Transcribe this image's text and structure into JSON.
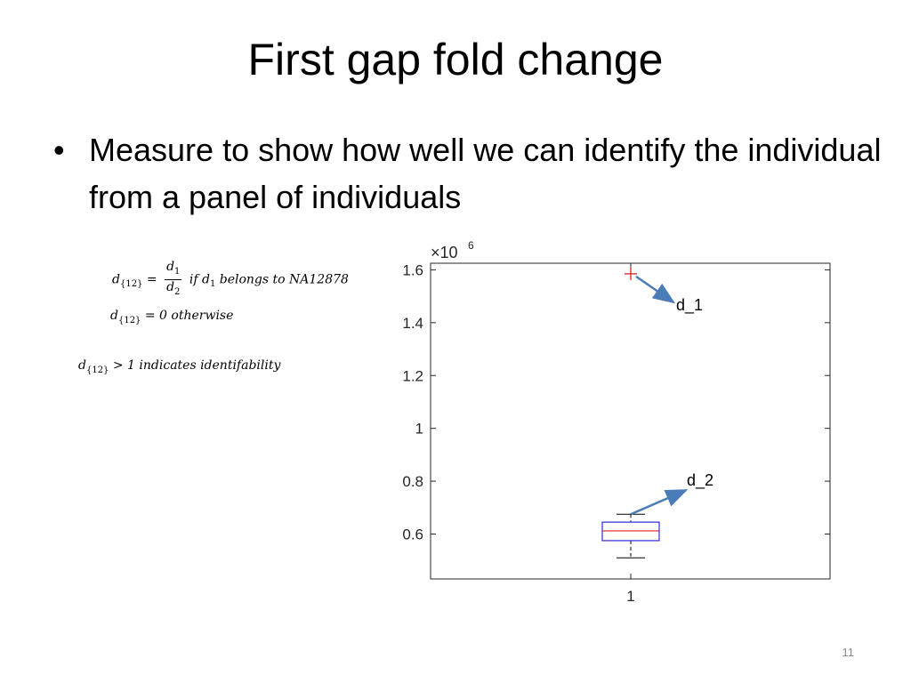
{
  "slide": {
    "title": "First gap fold change",
    "bullet": "Measure to show how well we can identify the individual from a panel of individuals",
    "page_number": "11"
  },
  "formulas": {
    "line1_lhs": "d",
    "line1_lhs_sub": "{12}",
    "line1_eq": "=",
    "line1_num": "d",
    "line1_num_sub": "1",
    "line1_den": "d",
    "line1_den_sub": "2",
    "line1_cond_if": "if d",
    "line1_cond_sub": "1",
    "line1_cond_rest": "belongs to NA12878",
    "line2_lhs": "d",
    "line2_lhs_sub": "{12}",
    "line2_rest": "= 0 otherwise",
    "line3_lhs": "d",
    "line3_lhs_sub": "{12}",
    "line3_rest": "> 1 indicates identifability"
  },
  "chart_data": {
    "type": "box",
    "x_tick_labels": [
      "1"
    ],
    "y_tick_labels": [
      "0.6",
      "0.8",
      "1",
      "1.2",
      "1.4",
      "1.6"
    ],
    "y_ticks": [
      600000,
      800000,
      1000000,
      1200000,
      1400000,
      1600000
    ],
    "y_exponent_label": "×10",
    "y_exponent_power": "6",
    "ylim": [
      430000,
      1625000
    ],
    "box": {
      "category": "1",
      "whisker_low": 510000,
      "q1": 575000,
      "median": 612000,
      "q3": 645000,
      "whisker_high": 675000,
      "outliers": [
        1585000
      ]
    },
    "annotations": [
      {
        "text": "d_1",
        "points_to": "outlier"
      },
      {
        "text": "d_2",
        "points_to": "upper-whisker"
      }
    ],
    "colors": {
      "box": "#2b2bd6",
      "median": "#e02020",
      "outlier": "#e02020",
      "whisker": "#000000",
      "arrow": "#4a7cb8"
    }
  }
}
